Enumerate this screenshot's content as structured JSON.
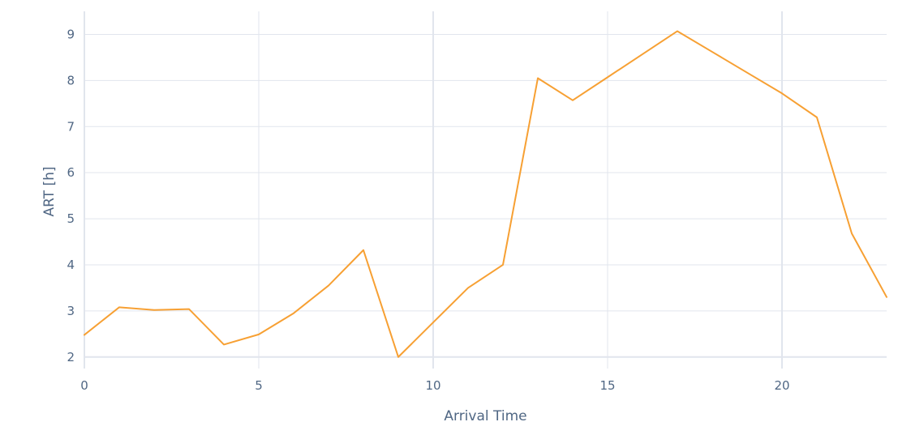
{
  "chart_data": {
    "type": "line",
    "xlabel": "Arrival Time",
    "ylabel": "ART [h]",
    "xlim": [
      0,
      23
    ],
    "ylim": [
      1.75,
      9.5
    ],
    "x_ticks": [
      0,
      5,
      10,
      15,
      20
    ],
    "y_ticks": [
      2,
      3,
      4,
      5,
      6,
      7,
      8,
      9
    ],
    "grid": true,
    "legend": "none",
    "series": [
      {
        "color": "#f7a033",
        "x": [
          0,
          1,
          2,
          3,
          4,
          5,
          6,
          7,
          8,
          9,
          10,
          11,
          12,
          13,
          14,
          15,
          16,
          17,
          18,
          19,
          20,
          21,
          22,
          23
        ],
        "y": [
          2.48,
          3.08,
          3.02,
          3.04,
          2.27,
          2.49,
          2.95,
          3.55,
          4.32,
          2.0,
          2.75,
          3.5,
          4.0,
          8.05,
          7.57,
          8.07,
          8.57,
          9.07,
          8.62,
          8.17,
          7.72,
          7.2,
          4.68,
          3.3
        ]
      }
    ]
  }
}
